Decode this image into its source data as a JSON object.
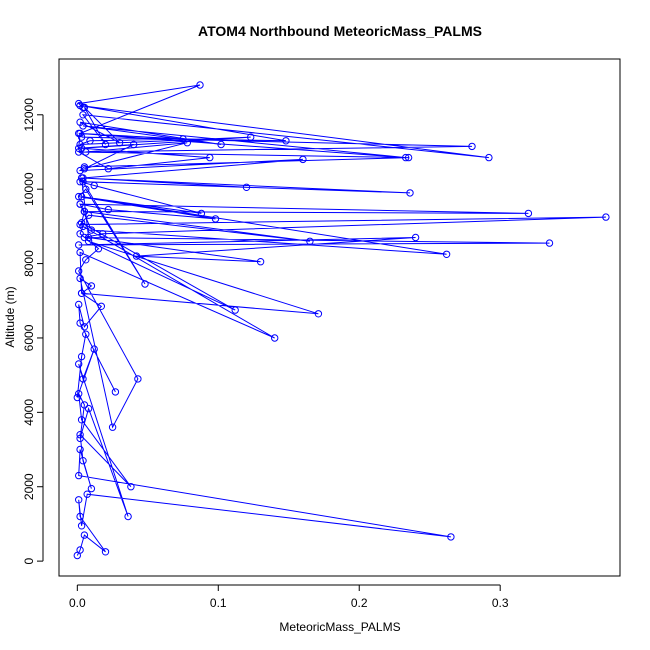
{
  "chart_data": {
    "type": "line",
    "title": "ATOM4 Northbound MeteoricMass_PALMS",
    "xlabel": "MeteoricMass_PALMS",
    "ylabel": "Altitude (m)",
    "xlim": [
      -0.013,
      0.385
    ],
    "ylim": [
      -400,
      13500
    ],
    "x_ticks": [
      0.0,
      0.1,
      0.2,
      0.3
    ],
    "x_tick_labels": [
      "0.0",
      "0.1",
      "0.2",
      "0.3"
    ],
    "y_ticks": [
      0,
      2000,
      4000,
      6000,
      8000,
      10000,
      12000
    ],
    "y_tick_labels": [
      "0",
      "2000",
      "4000",
      "6000",
      "8000",
      "10000",
      "12000"
    ],
    "grid": false,
    "legend": "none",
    "series_color": "#0000ff",
    "marker": "open-circle",
    "series": [
      {
        "x": [
          0.0,
          0.002,
          0.005,
          0.02,
          0.002,
          0.001,
          0.003,
          0.007,
          0.265,
          0.001,
          0.002,
          0.01,
          0.004,
          0.002,
          0.038,
          0.003,
          0.001,
          0.005,
          0.002,
          0.008,
          0.036,
          0.001,
          0.004,
          0.012,
          0.0,
          0.003,
          0.006,
          0.027,
          0.002,
          0.001,
          0.005,
          0.017,
          0.003,
          0.01,
          0.002,
          0.025,
          0.043,
          0.001,
          0.006,
          0.015,
          0.002,
          0.004,
          0.14,
          0.002,
          0.003,
          0.171,
          0.008,
          0.112,
          0.003,
          0.005,
          0.002,
          0.022,
          0.098,
          0.001,
          0.006,
          0.048,
          0.004,
          0.236,
          0.003,
          0.008,
          0.13,
          0.042,
          0.24,
          0.001,
          0.335,
          0.005,
          0.018,
          0.375,
          0.002,
          0.008,
          0.165,
          0.005,
          0.32,
          0.002,
          0.01,
          0.262,
          0.003,
          0.088,
          0.012,
          0.002,
          0.12,
          0.004,
          0.16,
          0.002,
          0.005,
          0.235,
          0.001,
          0.022,
          0.094,
          0.003,
          0.123,
          0.002,
          0.009,
          0.075,
          0.001,
          0.233,
          0.004,
          0.102,
          0.002,
          0.03,
          0.005,
          0.02,
          0.004,
          0.292,
          0.002,
          0.148,
          0.003,
          0.28,
          0.006,
          0.078,
          0.005,
          0.04,
          0.001,
          0.002,
          0.087,
          0.001,
          0.004
        ],
        "y": [
          150,
          300,
          700,
          250,
          1200,
          1650,
          950,
          1800,
          650,
          2300,
          3000,
          1950,
          2700,
          3400,
          2000,
          3800,
          4500,
          4200,
          3300,
          4100,
          1200,
          5300,
          4900,
          5700,
          4400,
          5500,
          6100,
          4550,
          6400,
          6900,
          6300,
          6850,
          7200,
          7400,
          7600,
          3600,
          4900,
          7800,
          8100,
          8400,
          8800,
          9000,
          6000,
          8300,
          7200,
          6650,
          8600,
          6750,
          9100,
          9400,
          9600,
          9450,
          9200,
          9800,
          10000,
          7450,
          10200,
          9900,
          10300,
          8700,
          8050,
          8200,
          8700,
          8500,
          8550,
          8700,
          8800,
          9250,
          9050,
          9300,
          8600,
          9400,
          9350,
          9600,
          8900,
          8250,
          9800,
          9350,
          10100,
          10200,
          10050,
          10300,
          10800,
          10500,
          10600,
          10850,
          11000,
          10550,
          10850,
          11100,
          11400,
          11200,
          11300,
          11350,
          11500,
          10850,
          11700,
          11200,
          11800,
          11250,
          12200,
          11200,
          12000,
          10850,
          12250,
          11300,
          11400,
          11150,
          11000,
          11250,
          10550,
          11200,
          11100,
          11500,
          12800,
          12300,
          12200
        ]
      }
    ]
  }
}
